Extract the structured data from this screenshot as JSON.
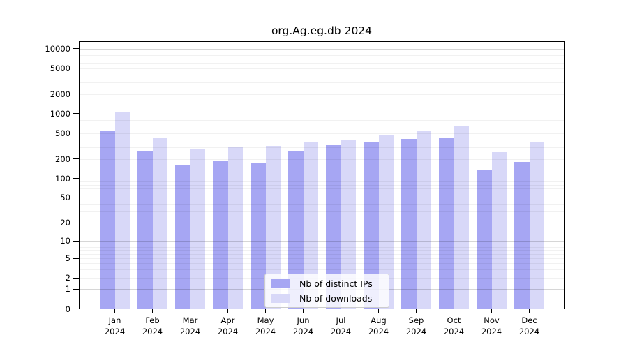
{
  "title": "org.Ag.eg.db 2024",
  "chart_data": {
    "type": "bar",
    "title": "org.Ag.eg.db 2024",
    "xlabel": "",
    "ylabel": "",
    "scale": "log10(value+1), 0 at baseline",
    "grid": "horizontal log minor+major gridlines on",
    "legend_position": "bottom-center inside plot",
    "year": "2024",
    "categories": [
      "Jan",
      "Feb",
      "Mar",
      "Apr",
      "May",
      "Jun",
      "Jul",
      "Aug",
      "Sep",
      "Oct",
      "Nov",
      "Dec"
    ],
    "series": [
      {
        "name": "Nb of distinct IPs",
        "color": "#a6a6f3",
        "values": [
          540,
          265,
          158,
          185,
          170,
          258,
          325,
          365,
          405,
          430,
          135,
          180
        ]
      },
      {
        "name": "Nb of downloads",
        "color": "#d8d8f8",
        "values": [
          1050,
          430,
          285,
          310,
          320,
          368,
          400,
          470,
          555,
          630,
          255,
          365
        ]
      }
    ],
    "y_ticks": [
      10000,
      5000,
      2000,
      1000,
      500,
      200,
      100,
      50,
      20,
      10,
      5,
      2,
      1,
      0
    ],
    "ylim": [
      0,
      13000
    ]
  }
}
